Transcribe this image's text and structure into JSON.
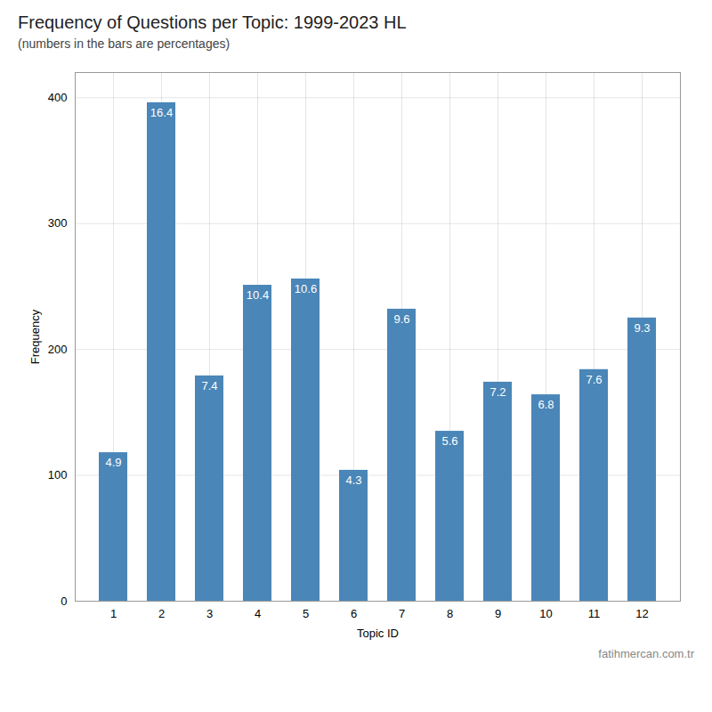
{
  "chart_data": {
    "type": "bar",
    "title": "Frequency of Questions per Topic: 1999-2023 HL",
    "subtitle": "(numbers in the bars are percentages)",
    "xlabel": "Topic ID",
    "ylabel": "Frequency",
    "annotations": [
      "fatihmercan.com.tr"
    ],
    "categories": [
      1,
      2,
      3,
      4,
      5,
      6,
      7,
      8,
      9,
      10,
      11,
      12
    ],
    "values": [
      118,
      396,
      179,
      251,
      256,
      104,
      232,
      135,
      174,
      164,
      184,
      225
    ],
    "percentages": [
      4.9,
      16.4,
      7.4,
      10.4,
      10.6,
      4.3,
      9.6,
      5.6,
      7.2,
      6.8,
      7.6,
      9.3
    ],
    "color": "#4a86b8",
    "ylim": [
      0,
      420
    ],
    "yticks": [
      0,
      100,
      200,
      300,
      400
    ],
    "grid": true
  }
}
